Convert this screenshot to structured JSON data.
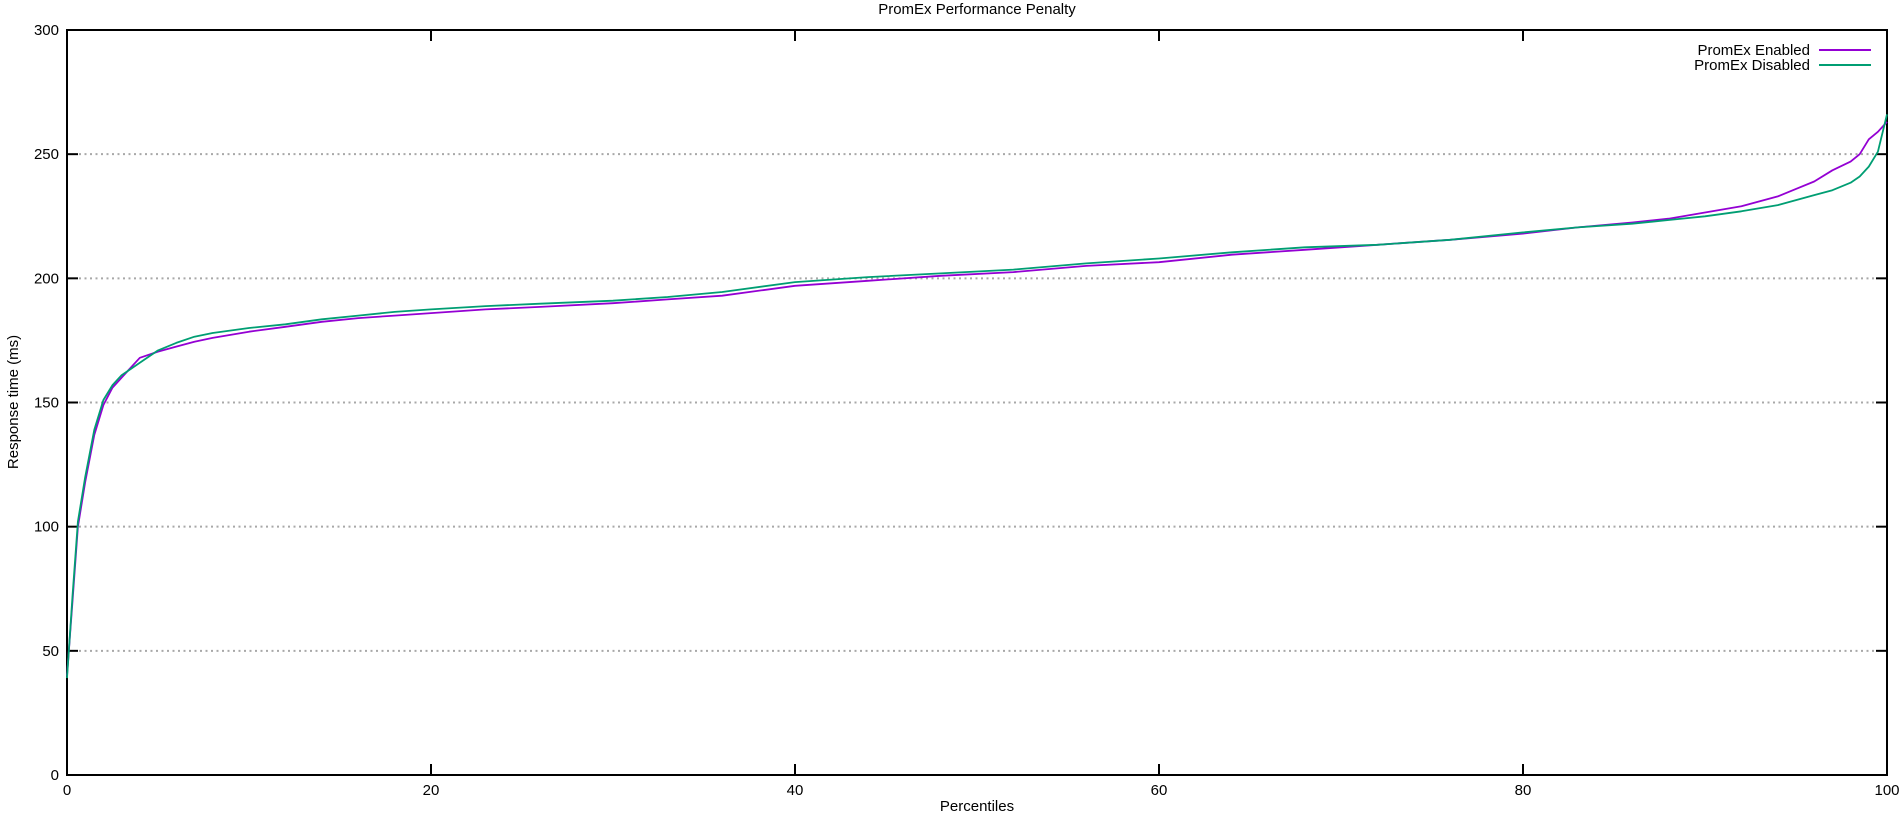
{
  "chart_data": {
    "type": "line",
    "title": "PromEx Performance Penalty",
    "xlabel": "Percentiles",
    "ylabel": "Response time (ms)",
    "xlim": [
      0,
      100
    ],
    "ylim": [
      0,
      300
    ],
    "xticks": [
      0,
      20,
      40,
      60,
      80,
      100
    ],
    "yticks": [
      0,
      50,
      100,
      150,
      200,
      250,
      300
    ],
    "grid": "horizontal-dotted",
    "grid_color": "#a8a8a8",
    "axis_color": "#000000",
    "background": "#ffffff",
    "legend_position": "top-right-inside",
    "x": [
      0,
      0.3,
      0.6,
      1,
      1.5,
      2,
      2.5,
      3,
      3.5,
      4,
      5,
      6,
      7,
      8,
      10,
      12,
      14,
      16,
      18,
      20,
      23,
      26,
      30,
      33,
      36,
      40,
      44,
      48,
      52,
      56,
      60,
      64,
      68,
      72,
      76,
      80,
      83,
      86,
      88,
      90,
      92,
      94,
      95,
      96,
      97,
      98,
      98.5,
      99,
      99.5,
      100
    ],
    "series": [
      {
        "name": "PromEx Enabled",
        "color": "#9400d3",
        "values": [
          40,
          70,
          100,
          118,
          137,
          149,
          156,
          160,
          164,
          168,
          170.5,
          172.5,
          174.5,
          176,
          178.5,
          180.5,
          182.5,
          184,
          185,
          186,
          187.5,
          188.5,
          190,
          191.5,
          193,
          197,
          199,
          201,
          202.5,
          205,
          206.5,
          209.5,
          211.5,
          213.5,
          215.5,
          218,
          220.5,
          222.5,
          224,
          226.5,
          229,
          233,
          236,
          239,
          243.5,
          247,
          250,
          256,
          259,
          263
        ]
      },
      {
        "name": "PromEx Disabled",
        "color": "#009e73",
        "values": [
          39,
          72,
          102,
          120,
          139,
          151,
          157,
          161,
          163.5,
          166,
          171,
          174,
          176.5,
          178,
          180,
          181.5,
          183.5,
          185,
          186.5,
          187.5,
          188.8,
          189.8,
          191,
          192.5,
          194.5,
          198.5,
          200.5,
          202,
          203.5,
          206,
          208,
          210.5,
          212.5,
          213.5,
          215.5,
          218.5,
          220.5,
          222,
          223.5,
          225,
          227,
          229.5,
          231.5,
          233.5,
          235.5,
          238.5,
          241,
          245,
          251,
          266
        ]
      }
    ]
  }
}
